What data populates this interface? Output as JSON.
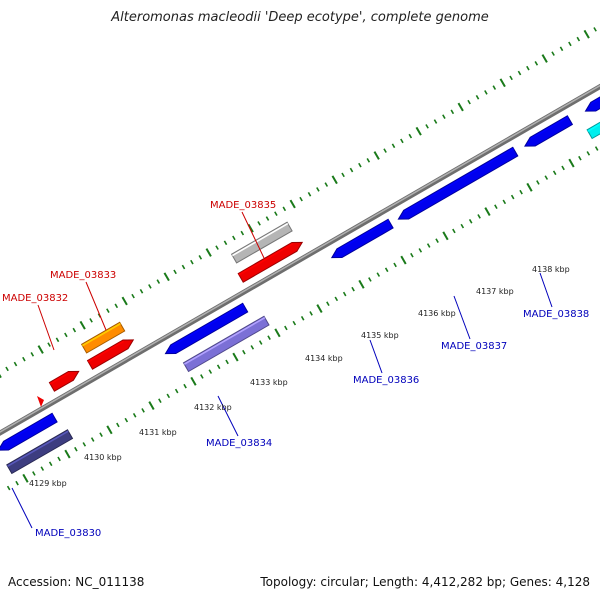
{
  "title": "Alteromonas macleodii 'Deep ecotype', complete genome",
  "footer": {
    "accession": "Accession: NC_011138",
    "summary": "Topology: circular; Length: 4,412,282 bp; Genes: 4,128"
  },
  "colors": {
    "backbone": "#8a8a8a",
    "tick": "#1a7a1a",
    "forward_label": "#cc0000",
    "reverse_label": "#0000bb",
    "scale_label": "#222222"
  },
  "scale_labels": [
    "4129 kbp",
    "4130 kbp",
    "4131 kbp",
    "4132 kbp",
    "4133 kbp",
    "4134 kbp",
    "4135 kbp",
    "4136 kbp",
    "4137 kbp",
    "4138 kbp"
  ],
  "gene_labels": [
    {
      "text": "MADE_03832",
      "strand": "forward"
    },
    {
      "text": "MADE_03833",
      "strand": "forward"
    },
    {
      "text": "MADE_03835",
      "strand": "forward"
    },
    {
      "text": "MADE_03830",
      "strand": "reverse"
    },
    {
      "text": "MADE_03834",
      "strand": "reverse"
    },
    {
      "text": "MADE_03836",
      "strand": "reverse"
    },
    {
      "text": "MADE_03837",
      "strand": "reverse"
    },
    {
      "text": "MADE_03838",
      "strand": "reverse"
    }
  ],
  "features": [
    {
      "strand": "forward",
      "lane": "outer",
      "color": "#ff8c00",
      "label": "MADE_03833"
    },
    {
      "strand": "forward",
      "lane": "outer",
      "color": "#b5b5b5",
      "label": "MADE_03835"
    },
    {
      "strand": "forward",
      "lane": "inner",
      "color": "#ee0000",
      "label": "MADE_03832"
    },
    {
      "strand": "forward",
      "lane": "inner",
      "color": "#ee0000",
      "label": ""
    },
    {
      "strand": "forward",
      "lane": "inner",
      "color": "#ee0000",
      "label": ""
    },
    {
      "strand": "reverse",
      "lane": "inner",
      "color": "#0000ee",
      "label": ""
    },
    {
      "strand": "reverse",
      "lane": "inner",
      "color": "#0000ee",
      "label": ""
    },
    {
      "strand": "reverse",
      "lane": "inner",
      "color": "#0000ee",
      "label": "MADE_03836"
    },
    {
      "strand": "reverse",
      "lane": "inner",
      "color": "#0000ee",
      "label": "MADE_03837"
    },
    {
      "strand": "reverse",
      "lane": "inner",
      "color": "#0000ee",
      "label": ""
    },
    {
      "strand": "reverse",
      "lane": "inner",
      "color": "#0000ee",
      "label": "MADE_03838"
    },
    {
      "strand": "reverse",
      "lane": "outer",
      "color": "#3d3d80",
      "label": "MADE_03830"
    },
    {
      "strand": "reverse",
      "lane": "outer",
      "color": "#7b70d6",
      "label": "MADE_03834"
    },
    {
      "strand": "reverse",
      "lane": "outer",
      "color": "#00eeee",
      "label": ""
    }
  ]
}
